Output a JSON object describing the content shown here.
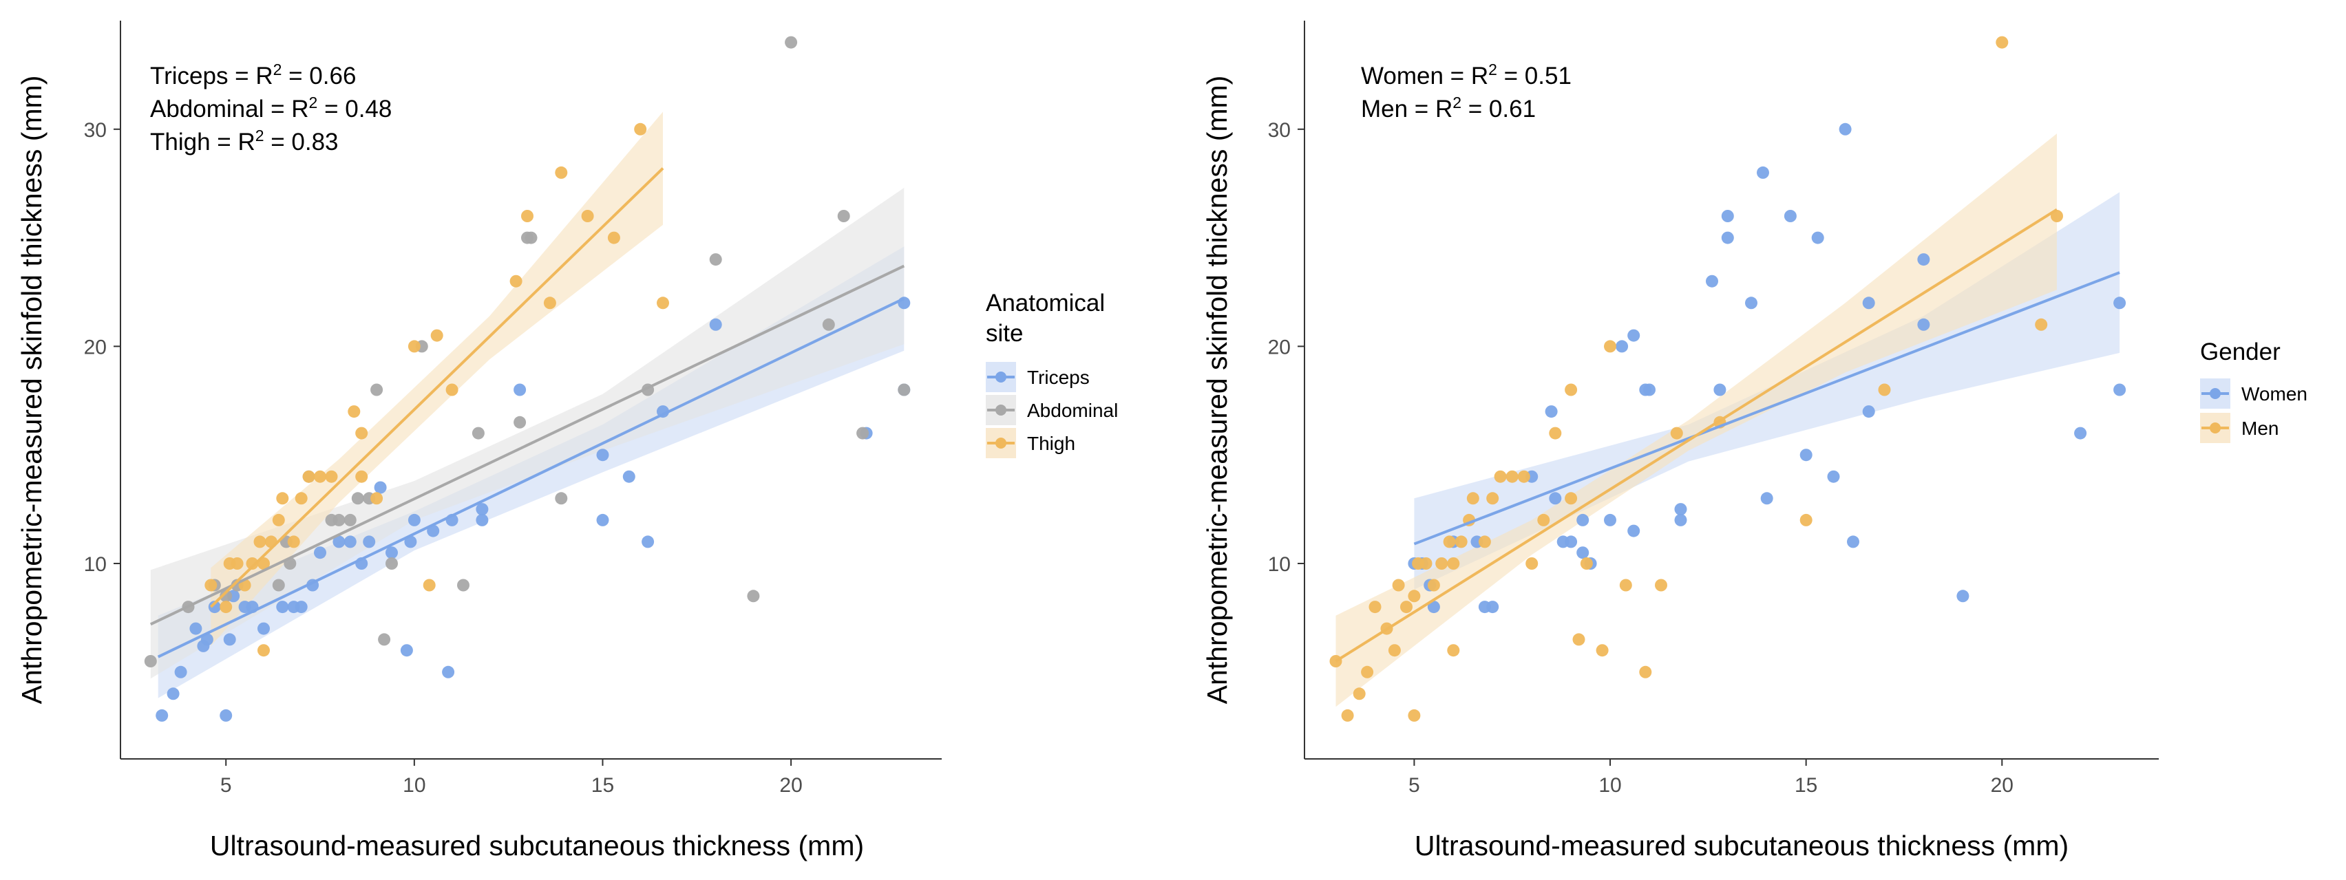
{
  "chart_data": [
    {
      "type": "scatter",
      "xlabel": "Ultrasound-measured subcutaneous thickness (mm)",
      "ylabel": "Anthropometric-measured skinfold thickness (mm)",
      "xlim": [
        2.2,
        24.0
      ],
      "ylim": [
        1.0,
        35.0
      ],
      "xticks": [
        5,
        10,
        15,
        20
      ],
      "yticks": [
        10,
        20,
        30
      ],
      "grid": false,
      "legend": {
        "title_lines": [
          "Anatomical",
          "site"
        ],
        "position": "right",
        "entries": [
          "Triceps",
          "Abdominal",
          "Thigh"
        ]
      },
      "annotations": [
        {
          "label": "Triceps",
          "r2": "0.66"
        },
        {
          "label": "Abdominal",
          "r2": "0.48"
        },
        {
          "label": "Thigh",
          "r2": "0.83"
        }
      ],
      "series": [
        {
          "name": "Triceps",
          "color": "#7ba5e8",
          "band_color": "#cddcf6",
          "fit": {
            "x": [
              3.2,
              23.0
            ],
            "y": [
              5.7,
              22.2
            ]
          },
          "band_upper": [
            [
              3.2,
              7.6
            ],
            [
              10,
              12.4
            ],
            [
              15,
              16.4
            ],
            [
              23,
              24.6
            ]
          ],
          "band_lower": [
            [
              3.2,
              3.8
            ],
            [
              10,
              10.6
            ],
            [
              15,
              14.2
            ],
            [
              23,
              19.8
            ]
          ],
          "points": [
            [
              3.3,
              3
            ],
            [
              3.6,
              4
            ],
            [
              3.8,
              5
            ],
            [
              4.2,
              7
            ],
            [
              4.4,
              6.2
            ],
            [
              4.5,
              6.5
            ],
            [
              4.7,
              8
            ],
            [
              5,
              3
            ],
            [
              5.1,
              6.5
            ],
            [
              5.2,
              8.5
            ],
            [
              5.5,
              8
            ],
            [
              5.7,
              8
            ],
            [
              6,
              7
            ],
            [
              6.5,
              8
            ],
            [
              6.8,
              8
            ],
            [
              7,
              8
            ],
            [
              7.3,
              9
            ],
            [
              7.5,
              10.5
            ],
            [
              8,
              11
            ],
            [
              8.3,
              11
            ],
            [
              8.6,
              10
            ],
            [
              8.8,
              11
            ],
            [
              9.1,
              13.5
            ],
            [
              9.4,
              10.5
            ],
            [
              9.8,
              6
            ],
            [
              9.9,
              11
            ],
            [
              10,
              12
            ],
            [
              10.5,
              11.5
            ],
            [
              10.9,
              5
            ],
            [
              11,
              12
            ],
            [
              11.8,
              12
            ],
            [
              11.8,
              12.5
            ],
            [
              12.8,
              18
            ],
            [
              15,
              15
            ],
            [
              15,
              12
            ],
            [
              15.7,
              14
            ],
            [
              16.2,
              11
            ],
            [
              16.6,
              17
            ],
            [
              18,
              21
            ],
            [
              22,
              16
            ],
            [
              23,
              22
            ],
            [
              23,
              18
            ]
          ]
        },
        {
          "name": "Abdominal",
          "color": "#a8a8a8",
          "band_color": "#e3e3e3",
          "fit": {
            "x": [
              3.0,
              23.0
            ],
            "y": [
              7.2,
              23.7
            ]
          },
          "band_upper": [
            [
              3.0,
              9.7
            ],
            [
              10,
              13.8
            ],
            [
              15,
              17.8
            ],
            [
              23,
              27.3
            ]
          ],
          "band_lower": [
            [
              3.0,
              4.7
            ],
            [
              10,
              12.0
            ],
            [
              15,
              15.2
            ],
            [
              23,
              20.1
            ]
          ],
          "points": [
            [
              3,
              5.5
            ],
            [
              4,
              8
            ],
            [
              4.7,
              9
            ],
            [
              5,
              8.5
            ],
            [
              5.3,
              9
            ],
            [
              6.4,
              9
            ],
            [
              6.7,
              10
            ],
            [
              6.6,
              11
            ],
            [
              7.2,
              14
            ],
            [
              7.8,
              12
            ],
            [
              8,
              12
            ],
            [
              8.3,
              12
            ],
            [
              8.5,
              13
            ],
            [
              8.8,
              13
            ],
            [
              9,
              18
            ],
            [
              9.2,
              6.5
            ],
            [
              9.4,
              10
            ],
            [
              10.2,
              20
            ],
            [
              11.3,
              9
            ],
            [
              11.7,
              16
            ],
            [
              12.8,
              16.5
            ],
            [
              13.1,
              25
            ],
            [
              13,
              25
            ],
            [
              13.9,
              13
            ],
            [
              16.2,
              18
            ],
            [
              18,
              24
            ],
            [
              19,
              8.5
            ],
            [
              20,
              34
            ],
            [
              21,
              21
            ],
            [
              21.4,
              26
            ],
            [
              21.9,
              16
            ],
            [
              23,
              18
            ]
          ]
        },
        {
          "name": "Thigh",
          "color": "#f0b85b",
          "band_color": "#f7e2bf",
          "fit": {
            "x": [
              4.6,
              16.6
            ],
            "y": [
              8.0,
              28.2
            ]
          },
          "band_upper": [
            [
              4.6,
              9.8
            ],
            [
              8,
              14.8
            ],
            [
              12,
              21.4
            ],
            [
              16.6,
              30.8
            ]
          ],
          "band_lower": [
            [
              4.6,
              6.2
            ],
            [
              8,
              12.8
            ],
            [
              12,
              19.4
            ],
            [
              16.6,
              25.6
            ]
          ],
          "points": [
            [
              4.6,
              9
            ],
            [
              5,
              8
            ],
            [
              5.1,
              10
            ],
            [
              5.3,
              10
            ],
            [
              5.5,
              9
            ],
            [
              5.7,
              10
            ],
            [
              5.9,
              11
            ],
            [
              6,
              6
            ],
            [
              6,
              10
            ],
            [
              6.2,
              11
            ],
            [
              6.4,
              12
            ],
            [
              6.5,
              13
            ],
            [
              6.8,
              11
            ],
            [
              7,
              13
            ],
            [
              7.2,
              14
            ],
            [
              7.5,
              14
            ],
            [
              7.8,
              14
            ],
            [
              8.4,
              17
            ],
            [
              8.6,
              16
            ],
            [
              8.6,
              14
            ],
            [
              9,
              13
            ],
            [
              10,
              20
            ],
            [
              10.4,
              9
            ],
            [
              10.6,
              20.5
            ],
            [
              11,
              18
            ],
            [
              12.7,
              23
            ],
            [
              13,
              26
            ],
            [
              13.6,
              22
            ],
            [
              13.9,
              28
            ],
            [
              14.6,
              26
            ],
            [
              15.3,
              25
            ],
            [
              16,
              30
            ],
            [
              16.6,
              22
            ]
          ]
        }
      ]
    },
    {
      "type": "scatter",
      "xlabel": "Ultrasound-measured subcutaneous thickness (mm)",
      "ylabel": "Anthropometric-measured skinfold thickness (mm)",
      "xlim": [
        2.2,
        24.0
      ],
      "ylim": [
        1.0,
        35.0
      ],
      "xticks": [
        5,
        10,
        15,
        20
      ],
      "yticks": [
        10,
        20,
        30
      ],
      "grid": false,
      "legend": {
        "title_lines": [
          "Gender"
        ],
        "position": "right",
        "entries": [
          "Women",
          "Men"
        ]
      },
      "annotations": [
        {
          "label": "Women",
          "r2": "0.51"
        },
        {
          "label": "Men",
          "r2": "0.61"
        }
      ],
      "series": [
        {
          "name": "Women",
          "color": "#7ba5e8",
          "band_color": "#cddcf6",
          "fit": {
            "x": [
              5.0,
              23.0
            ],
            "y": [
              10.9,
              23.4
            ]
          },
          "band_upper": [
            [
              5.0,
              13.0
            ],
            [
              12,
              16.4
            ],
            [
              18,
              21.4
            ],
            [
              23,
              27.1
            ]
          ],
          "band_lower": [
            [
              5.0,
              8.8
            ],
            [
              12,
              14.7
            ],
            [
              18,
              17.6
            ],
            [
              23,
              19.7
            ]
          ],
          "points": [
            [
              5,
              10
            ],
            [
              5.2,
              10
            ],
            [
              5.4,
              9
            ],
            [
              5.5,
              8
            ],
            [
              6,
              11
            ],
            [
              6.6,
              11
            ],
            [
              6.8,
              8
            ],
            [
              7,
              8
            ],
            [
              8,
              14
            ],
            [
              8.5,
              17
            ],
            [
              8.6,
              13
            ],
            [
              8.8,
              11
            ],
            [
              9,
              11
            ],
            [
              9.3,
              12
            ],
            [
              9.3,
              10.5
            ],
            [
              9.5,
              10
            ],
            [
              10,
              12
            ],
            [
              10.3,
              20
            ],
            [
              10.6,
              11.5
            ],
            [
              10.6,
              20.5
            ],
            [
              10.9,
              18
            ],
            [
              11,
              18
            ],
            [
              11.8,
              12.5
            ],
            [
              11.8,
              12
            ],
            [
              12.6,
              23
            ],
            [
              12.8,
              18
            ],
            [
              13,
              26
            ],
            [
              13,
              25
            ],
            [
              13.6,
              22
            ],
            [
              13.9,
              28
            ],
            [
              14,
              13
            ],
            [
              14.6,
              26
            ],
            [
              15,
              15
            ],
            [
              15.3,
              25
            ],
            [
              15.7,
              14
            ],
            [
              16,
              30
            ],
            [
              16.2,
              11
            ],
            [
              16.6,
              17
            ],
            [
              16.6,
              22
            ],
            [
              18,
              24
            ],
            [
              18,
              21
            ],
            [
              19,
              8.5
            ],
            [
              22,
              16
            ],
            [
              23,
              22
            ],
            [
              23,
              18
            ]
          ]
        },
        {
          "name": "Men",
          "color": "#f0b85b",
          "band_color": "#f7e2bf",
          "fit": {
            "x": [
              3.0,
              21.4
            ],
            "y": [
              5.5,
              26.3
            ]
          },
          "band_upper": [
            [
              3.0,
              7.6
            ],
            [
              8,
              12.0
            ],
            [
              12,
              16.6
            ],
            [
              16,
              22.0
            ],
            [
              21.4,
              29.8
            ]
          ],
          "band_lower": [
            [
              3.0,
              3.4
            ],
            [
              8,
              10.4
            ],
            [
              12,
              15.2
            ],
            [
              16,
              18.8
            ],
            [
              21.4,
              22.6
            ]
          ],
          "points": [
            [
              3,
              5.5
            ],
            [
              3.3,
              3
            ],
            [
              3.6,
              4
            ],
            [
              3.8,
              5
            ],
            [
              4,
              8
            ],
            [
              4.3,
              7
            ],
            [
              4.5,
              6
            ],
            [
              4.6,
              9
            ],
            [
              4.8,
              8
            ],
            [
              5,
              3
            ],
            [
              5,
              8.5
            ],
            [
              5.1,
              10
            ],
            [
              5.3,
              10
            ],
            [
              5.5,
              9
            ],
            [
              5.7,
              10
            ],
            [
              5.9,
              11
            ],
            [
              6,
              6
            ],
            [
              6,
              10
            ],
            [
              6.2,
              11
            ],
            [
              6.4,
              12
            ],
            [
              6.5,
              13
            ],
            [
              6.8,
              11
            ],
            [
              7,
              13
            ],
            [
              7.2,
              14
            ],
            [
              7.5,
              14
            ],
            [
              7.8,
              14
            ],
            [
              8,
              10
            ],
            [
              8.3,
              12
            ],
            [
              8.6,
              16
            ],
            [
              9,
              13
            ],
            [
              9,
              18
            ],
            [
              9.2,
              6.5
            ],
            [
              9.4,
              10
            ],
            [
              9.8,
              6
            ],
            [
              10,
              20
            ],
            [
              10.4,
              9
            ],
            [
              10.9,
              5
            ],
            [
              11.3,
              9
            ],
            [
              11.7,
              16
            ],
            [
              12.8,
              16.5
            ],
            [
              15,
              12
            ],
            [
              17,
              18
            ],
            [
              20,
              34
            ],
            [
              21,
              21
            ],
            [
              21.4,
              26
            ]
          ]
        }
      ]
    }
  ]
}
